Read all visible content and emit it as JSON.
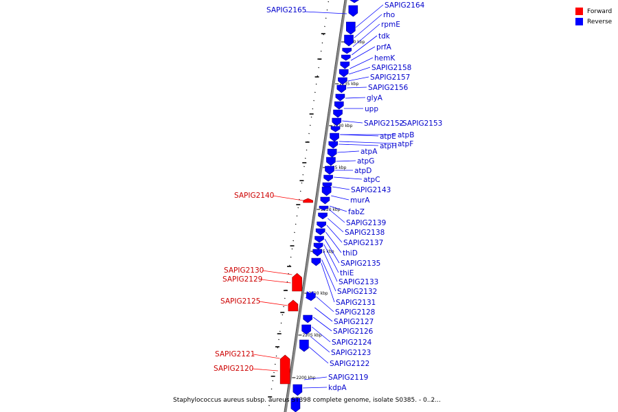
{
  "caption": "Staphylococcus aureus subsp. aureus ST398 complete genome, isolate S0385. - 0..2...",
  "legend": [
    {
      "label": "Forward",
      "color": "#ff0000"
    },
    {
      "label": "Reverse",
      "color": "#0000ff"
    }
  ],
  "colors": {
    "forward": "#ff0000",
    "reverse": "#0000ff",
    "forward_label": "#cc0000",
    "reverse_label": "#0000cc",
    "backbone": "#888888"
  },
  "scale_ticks_kbp": [
    "2240 kbp",
    "2235 kbp",
    "2230 kbp",
    "2225 kbp",
    "2220 kbp",
    "2215 kbp",
    "2210 kbp",
    "2205 kbp",
    "2200 kbp"
  ],
  "forward_genes": [
    "SAPIG2140",
    "SAPIG2130",
    "SAPIG2129",
    "SAPIG2125",
    "SAPIG2121",
    "SAPIG2120"
  ],
  "reverse_genes": [
    "SAPIG2165",
    "SAPIG2164",
    "rho",
    "rpmE",
    "tdk",
    "prfA",
    "hemK",
    "SAPIG2158",
    "SAPIG2157",
    "SAPIG2156",
    "glyA",
    "upp",
    "SAPIG2152",
    "SAPIG2153",
    "atpB",
    "atpE",
    "atpF",
    "atpH",
    "atpA",
    "atpG",
    "atpD",
    "atpC",
    "SAPIG2143",
    "murA",
    "fabZ",
    "SAPIG2139",
    "SAPIG2138",
    "SAPIG2137",
    "thiD",
    "SAPIG2135",
    "thiE",
    "SAPIG2133",
    "SAPIG2132",
    "SAPIG2131",
    "SAPIG2128",
    "SAPIG2127",
    "SAPIG2126",
    "SAPIG2124",
    "SAPIG2123",
    "SAPIG2122",
    "SAPIG2119",
    "kdpA"
  ]
}
